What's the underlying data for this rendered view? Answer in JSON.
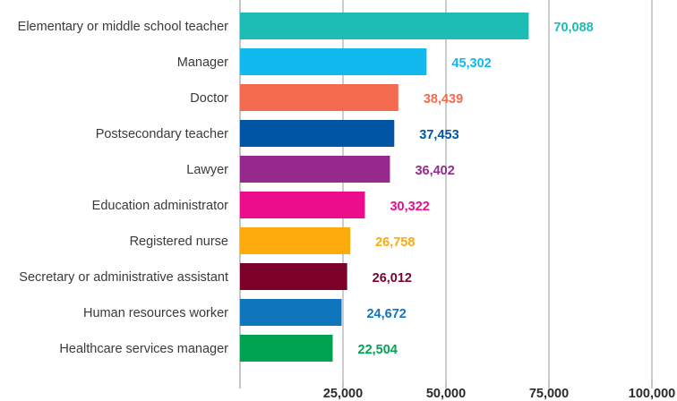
{
  "chart_data": {
    "type": "bar",
    "orientation": "horizontal",
    "categories": [
      "Elementary or middle school teacher",
      "Manager",
      "Doctor",
      "Postsecondary teacher",
      "Lawyer",
      "Education administrator",
      "Registered nurse",
      "Secretary or administrative assistant",
      "Human resources worker",
      "Healthcare services manager"
    ],
    "values": [
      70088,
      45302,
      38439,
      37453,
      36402,
      30322,
      26758,
      26012,
      24672,
      22504
    ],
    "value_labels": [
      "70,088",
      "45,302",
      "38,439",
      "37,453",
      "36,402",
      "30,322",
      "26,758",
      "26,012",
      "24,672",
      "22,504"
    ],
    "colors": [
      "#1dbcb4",
      "#12b9ee",
      "#f26b4f",
      "#0055a5",
      "#952a8c",
      "#eb0d8c",
      "#fcaa0c",
      "#7c0129",
      "#0f75bd",
      "#00a350"
    ],
    "xlim": [
      0,
      100000
    ],
    "xticks": [
      0,
      25000,
      50000,
      75000,
      100000
    ],
    "xtick_labels": [
      "",
      "25,000",
      "50,000",
      "75,000",
      "100,000"
    ],
    "grid": true
  }
}
